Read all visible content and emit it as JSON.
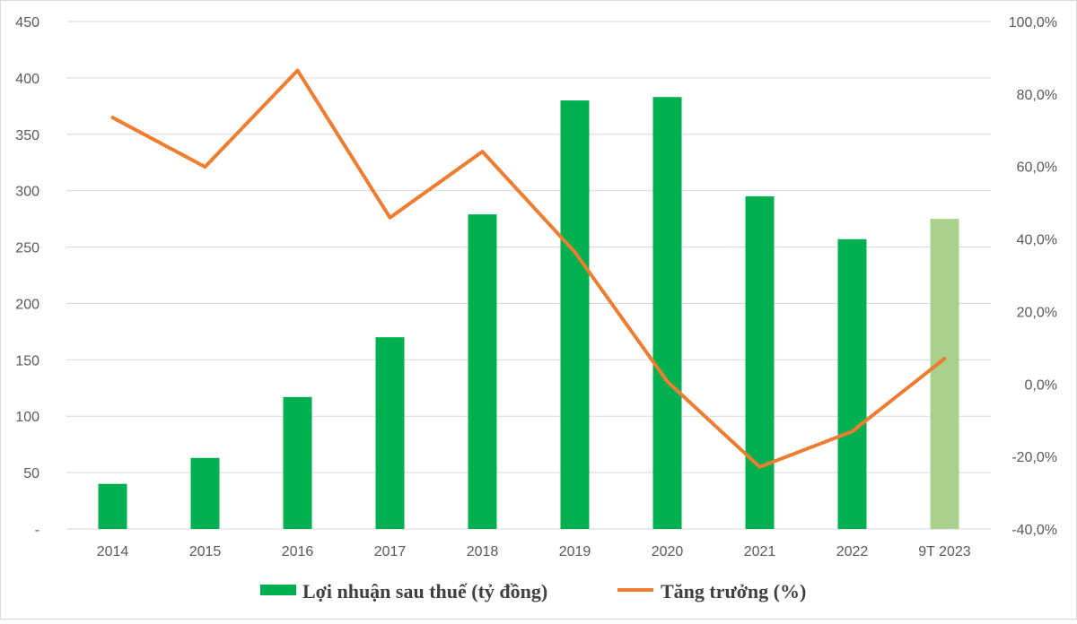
{
  "chart_data": {
    "type": "bar+line",
    "categories": [
      "2014",
      "2015",
      "2016",
      "2017",
      "2018",
      "2019",
      "2020",
      "2021",
      "2022",
      "9T 2023"
    ],
    "series": [
      {
        "name": "Lợi nhuận sau thuế (tỷ đồng)",
        "type": "bar",
        "axis": "left",
        "color": "#00B050",
        "highlight_color": "#A9D08E",
        "highlight_index": 9,
        "values": [
          40,
          63,
          117,
          170,
          279,
          380,
          383,
          295,
          257,
          275
        ]
      },
      {
        "name": "Tăng trưởng (%)",
        "type": "line",
        "axis": "right",
        "color": "#ED7D31",
        "values": [
          73.5,
          59.9,
          86.5,
          45.9,
          64.1,
          36.4,
          0.7,
          -22.9,
          -13.1,
          7.0
        ]
      }
    ],
    "y_left": {
      "min": 0,
      "max": 450,
      "ticks": [
        0,
        50,
        100,
        150,
        200,
        250,
        300,
        350,
        400,
        450
      ],
      "tick_labels": [
        "-",
        "50",
        "100",
        "150",
        "200",
        "250",
        "300",
        "350",
        "400",
        "450"
      ]
    },
    "y_right": {
      "min": -40,
      "max": 100,
      "ticks": [
        -40,
        -20,
        0,
        20,
        40,
        60,
        80,
        100
      ],
      "tick_labels": [
        "-40,0%",
        "-20,0%",
        "0,0%",
        "20,0%",
        "40,0%",
        "60,0%",
        "80,0%",
        "100,0%"
      ]
    },
    "grid": true,
    "legend": "bottom-center",
    "title": "",
    "xlabel": "",
    "ylabel": ""
  }
}
